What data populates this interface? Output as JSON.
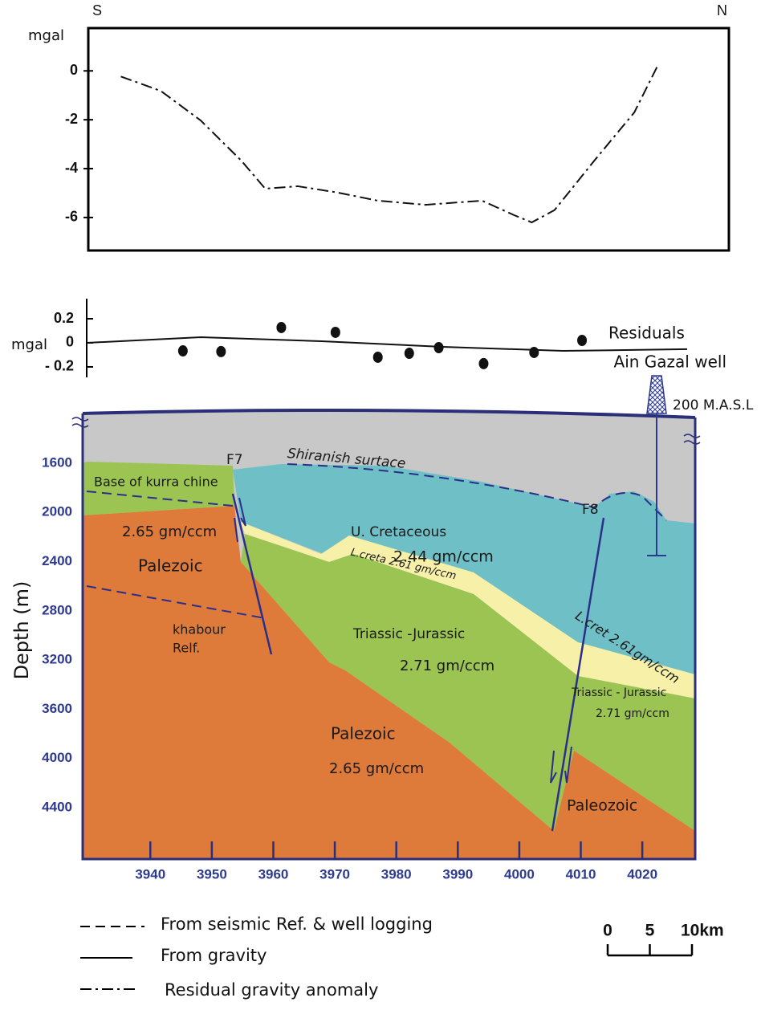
{
  "chart_data": [
    {
      "type": "line",
      "corner_labels": [
        "S",
        "N"
      ],
      "ylabel": "mgal",
      "x": [
        3935.2,
        3941.7,
        3948.2,
        3954.8,
        3958.7,
        3964.0,
        3970.5,
        3977.0,
        3984.8,
        3994.0,
        3999.2,
        4002.1,
        4005.8,
        4012.3,
        4018.8,
        4022.7
      ],
      "values": [
        -0.23,
        -0.82,
        -2.03,
        -3.67,
        -4.82,
        -4.72,
        -4.98,
        -5.31,
        -5.48,
        -5.31,
        -5.9,
        -6.2,
        -5.7,
        -3.67,
        -1.7,
        0.26
      ],
      "line_style": "dash-dot",
      "color": "#111111",
      "xlim": [
        3929.9,
        4034.2
      ],
      "ylim": [
        -7.35,
        1.75
      ],
      "yticks": [
        0,
        -2,
        -4,
        -6
      ]
    },
    {
      "type": "scatter",
      "ylabel": "mgal",
      "label": "Residuals",
      "color": "#111111",
      "x": [
        3945.3,
        3951.5,
        3961.3,
        3970.1,
        3977.0,
        3982.1,
        3986.9,
        3994.2,
        4002.4,
        4010.2
      ],
      "values": [
        -0.067,
        -0.073,
        0.127,
        0.087,
        -0.12,
        -0.087,
        -0.04,
        -0.173,
        -0.08,
        0.02
      ],
      "fit": {
        "x": [
          3929.7,
          3948.2,
          3967.8,
          3987.5,
          4007.1,
          4027.3
        ],
        "values": [
          0,
          0.047,
          0.013,
          -0.033,
          -0.067,
          -0.053
        ]
      },
      "xlim": [
        3929,
        4028.6
      ],
      "ylim": [
        -0.287,
        0.367
      ],
      "yticks": [
        0.2,
        0,
        {
          "value": -0.2,
          "label": "- 0.2"
        }
      ]
    },
    {
      "type": "section",
      "ylabel": "Depth (m)",
      "y_inverted": true,
      "xlim": [
        3929,
        4028.6
      ],
      "ylim": [
        1176,
        4818
      ],
      "xticks": [
        3940,
        3950,
        3960,
        3970,
        3980,
        3990,
        4000,
        4010,
        4020
      ],
      "yticks": [
        1600,
        2000,
        2400,
        2800,
        3200,
        3600,
        4000,
        4400
      ],
      "annotations": [
        "Shiranish surtace",
        "F7",
        "Base of kurra chine",
        "2.65 gm/ccm",
        "Palezoic",
        "khabour",
        "Relf.",
        "U. Cretaceous",
        "2.44 gm/ccm",
        "L.creta 2.61 gm/ccm",
        "F8",
        "L.cret 2.61gm/ccm",
        "Triassic -Jurassic",
        "2.71 gm/ccm",
        "Triassic - Jurassic",
        "2.71 gm/ccm",
        "Palezoic",
        "2.65 gm/ccm",
        "Paleozoic"
      ],
      "well": {
        "name": "Ain Gazal well",
        "elevation_label": "200 M.A.S.L"
      }
    }
  ],
  "legend": [
    {
      "label": "From seismic Ref. & well logging",
      "style": "dashed"
    },
    {
      "label": "From gravity",
      "style": "solid"
    },
    {
      "label": "Residual gravity anomaly",
      "style": "dash-dot"
    }
  ],
  "scale_bar": {
    "ticks": [
      0,
      5,
      {
        "value": 10,
        "label": "10km"
      }
    ]
  }
}
